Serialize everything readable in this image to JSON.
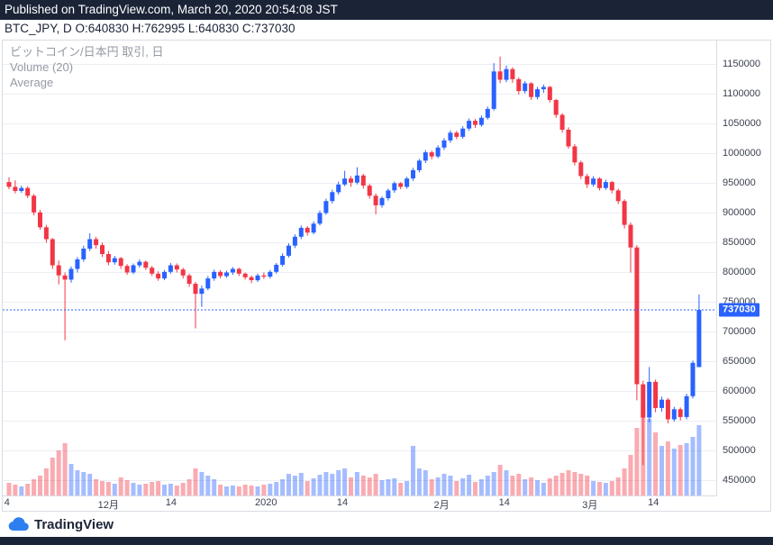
{
  "header": {
    "published_line": "Published on TradingView.com, March 20, 2020 20:54:08 JST",
    "symbol_line": "BTC_JPY, D O:640830 H:762995 L:640830 C:737030"
  },
  "legend": {
    "title": "ビットコイン/日本円 取引, 日",
    "volume": "Volume (20)",
    "average": "Average"
  },
  "footer": {
    "brand": "TradingView"
  },
  "chart_data": {
    "type": "candlestick",
    "symbol": "BTC_JPY",
    "interval": "D",
    "title": "ビットコイン/日本円 取引, 日",
    "ohlc_readout": {
      "open": 640830,
      "high": 762995,
      "low": 640830,
      "close": 737030
    },
    "last_price": 737030,
    "last_price_label": "737030",
    "price_min": 425000,
    "price_max": 1190000,
    "y_ticks": [
      1150000,
      1100000,
      1050000,
      1000000,
      950000,
      900000,
      850000,
      800000,
      750000,
      700000,
      650000,
      600000,
      550000,
      500000,
      450000
    ],
    "x_ticks": [
      {
        "label": "4",
        "pct": 0.6
      },
      {
        "label": "12月",
        "pct": 14.8
      },
      {
        "label": "14",
        "pct": 23.6
      },
      {
        "label": "2020",
        "pct": 36.9
      },
      {
        "label": "14",
        "pct": 47.6
      },
      {
        "label": "2月",
        "pct": 61.5
      },
      {
        "label": "14",
        "pct": 70.3
      },
      {
        "label": "3月",
        "pct": 82.3
      },
      {
        "label": "14",
        "pct": 91.2
      }
    ],
    "colors": {
      "up": "#2962ff",
      "down": "#f23645",
      "volume_up": "rgba(41,98,255,0.42)",
      "volume_down": "rgba(242,54,69,0.42)",
      "last_price_line": "#2962ff",
      "grid": "#eceef4",
      "header_bg": "#1b2437"
    },
    "candles": [
      [
        952000,
        960000,
        940000,
        944000,
        14
      ],
      [
        944000,
        955000,
        933000,
        937000,
        12
      ],
      [
        937000,
        946000,
        934000,
        942000,
        10
      ],
      [
        942000,
        945000,
        925000,
        929000,
        13
      ],
      [
        929000,
        932000,
        896000,
        901000,
        18
      ],
      [
        901000,
        905000,
        872000,
        876000,
        22
      ],
      [
        876000,
        880000,
        850000,
        856000,
        30
      ],
      [
        856000,
        858000,
        806000,
        812000,
        42
      ],
      [
        812000,
        820000,
        780000,
        795000,
        50
      ],
      [
        795000,
        800000,
        686000,
        788000,
        58
      ],
      [
        788000,
        810000,
        783000,
        806000,
        35
      ],
      [
        806000,
        826000,
        800000,
        822000,
        28
      ],
      [
        822000,
        845000,
        818000,
        840000,
        26
      ],
      [
        840000,
        866000,
        836000,
        856000,
        24
      ],
      [
        856000,
        860000,
        840000,
        846000,
        18
      ],
      [
        846000,
        850000,
        826000,
        831000,
        16
      ],
      [
        831000,
        836000,
        812000,
        817000,
        15
      ],
      [
        817000,
        828000,
        813000,
        824000,
        13
      ],
      [
        824000,
        826000,
        806000,
        811000,
        20
      ],
      [
        811000,
        814000,
        796000,
        800000,
        17
      ],
      [
        800000,
        815000,
        797000,
        812000,
        14
      ],
      [
        812000,
        822000,
        808000,
        818000,
        12
      ],
      [
        818000,
        820000,
        804000,
        808000,
        13
      ],
      [
        808000,
        811000,
        794000,
        798000,
        15
      ],
      [
        798000,
        802000,
        786000,
        790000,
        16
      ],
      [
        790000,
        804000,
        787000,
        801000,
        12
      ],
      [
        801000,
        816000,
        798000,
        812000,
        13
      ],
      [
        812000,
        815000,
        800000,
        805000,
        11
      ],
      [
        805000,
        808000,
        790000,
        795000,
        14
      ],
      [
        795000,
        798000,
        776000,
        781000,
        18
      ],
      [
        781000,
        784000,
        706000,
        764000,
        30
      ],
      [
        764000,
        778000,
        742000,
        773000,
        26
      ],
      [
        773000,
        794000,
        770000,
        790000,
        22
      ],
      [
        790000,
        805000,
        786000,
        801000,
        18
      ],
      [
        801000,
        804000,
        790000,
        794000,
        12
      ],
      [
        794000,
        803000,
        791000,
        800000,
        10
      ],
      [
        800000,
        809000,
        796000,
        806000,
        11
      ],
      [
        806000,
        808000,
        794000,
        798000,
        10
      ],
      [
        798000,
        800000,
        788000,
        792000,
        12
      ],
      [
        792000,
        795000,
        782000,
        787000,
        11
      ],
      [
        787000,
        798000,
        784000,
        795000,
        10
      ],
      [
        795000,
        800000,
        789000,
        793000,
        12
      ],
      [
        793000,
        804000,
        790000,
        801000,
        13
      ],
      [
        801000,
        816000,
        798000,
        813000,
        15
      ],
      [
        813000,
        832000,
        810000,
        828000,
        18
      ],
      [
        828000,
        849000,
        825000,
        845000,
        24
      ],
      [
        845000,
        864000,
        841000,
        860000,
        22
      ],
      [
        860000,
        879000,
        856000,
        875000,
        25
      ],
      [
        875000,
        878000,
        862000,
        867000,
        16
      ],
      [
        867000,
        886000,
        864000,
        882000,
        19
      ],
      [
        882000,
        904000,
        879000,
        900000,
        23
      ],
      [
        900000,
        924000,
        897000,
        920000,
        26
      ],
      [
        920000,
        939000,
        916000,
        935000,
        24
      ],
      [
        935000,
        953000,
        931000,
        948000,
        28
      ],
      [
        948000,
        971000,
        945000,
        958000,
        30
      ],
      [
        958000,
        962000,
        944000,
        951000,
        20
      ],
      [
        951000,
        977000,
        948000,
        963000,
        26
      ],
      [
        963000,
        966000,
        941000,
        946000,
        22
      ],
      [
        946000,
        949000,
        924000,
        929000,
        20
      ],
      [
        929000,
        933000,
        898000,
        913000,
        24
      ],
      [
        913000,
        928000,
        909000,
        925000,
        17
      ],
      [
        925000,
        941000,
        921000,
        938000,
        18
      ],
      [
        938000,
        953000,
        934000,
        950000,
        19
      ],
      [
        950000,
        952000,
        940000,
        944000,
        14
      ],
      [
        944000,
        961000,
        941000,
        958000,
        16
      ],
      [
        958000,
        976000,
        954000,
        972000,
        55
      ],
      [
        972000,
        991000,
        968000,
        988000,
        30
      ],
      [
        988000,
        1006000,
        984000,
        1002000,
        28
      ],
      [
        1002000,
        1005000,
        990000,
        995000,
        18
      ],
      [
        995000,
        1014000,
        992000,
        1010000,
        20
      ],
      [
        1010000,
        1026000,
        1006000,
        1022000,
        24
      ],
      [
        1022000,
        1039000,
        1018000,
        1035000,
        22
      ],
      [
        1035000,
        1038000,
        1024000,
        1028000,
        16
      ],
      [
        1028000,
        1046000,
        1025000,
        1042000,
        19
      ],
      [
        1042000,
        1059000,
        1038000,
        1055000,
        23
      ],
      [
        1055000,
        1058000,
        1043000,
        1048000,
        15
      ],
      [
        1048000,
        1064000,
        1045000,
        1060000,
        18
      ],
      [
        1060000,
        1079000,
        1057000,
        1075000,
        22
      ],
      [
        1075000,
        1152000,
        1072000,
        1138000,
        26
      ],
      [
        1138000,
        1163000,
        1118000,
        1124000,
        34
      ],
      [
        1124000,
        1148000,
        1120000,
        1142000,
        28
      ],
      [
        1142000,
        1145000,
        1119000,
        1125000,
        22
      ],
      [
        1125000,
        1128000,
        1099000,
        1105000,
        24
      ],
      [
        1105000,
        1122000,
        1101000,
        1118000,
        18
      ],
      [
        1118000,
        1120000,
        1090000,
        1095000,
        20
      ],
      [
        1095000,
        1112000,
        1091000,
        1108000,
        17
      ],
      [
        1108000,
        1116000,
        1102000,
        1112000,
        14
      ],
      [
        1112000,
        1114000,
        1086000,
        1090000,
        19
      ],
      [
        1090000,
        1092000,
        1060000,
        1065000,
        22
      ],
      [
        1065000,
        1068000,
        1035000,
        1040000,
        25
      ],
      [
        1040000,
        1044000,
        1008000,
        1012000,
        28
      ],
      [
        1012000,
        1016000,
        980000,
        985000,
        26
      ],
      [
        985000,
        988000,
        957000,
        962000,
        24
      ],
      [
        962000,
        966000,
        942000,
        948000,
        22
      ],
      [
        948000,
        962000,
        944000,
        958000,
        16
      ],
      [
        958000,
        960000,
        938000,
        942000,
        15
      ],
      [
        942000,
        956000,
        939000,
        952000,
        14
      ],
      [
        952000,
        954000,
        933000,
        938000,
        16
      ],
      [
        938000,
        941000,
        915000,
        920000,
        20
      ],
      [
        920000,
        923000,
        874000,
        880000,
        30
      ],
      [
        880000,
        884000,
        800000,
        842000,
        45
      ],
      [
        842000,
        846000,
        585000,
        612000,
        75
      ],
      [
        612000,
        618000,
        476000,
        556000,
        100
      ],
      [
        556000,
        641000,
        548000,
        616000,
        85
      ],
      [
        616000,
        620000,
        565000,
        572000,
        70
      ],
      [
        572000,
        591000,
        566000,
        586000,
        55
      ],
      [
        586000,
        589000,
        546000,
        553000,
        60
      ],
      [
        553000,
        574000,
        549000,
        570000,
        52
      ],
      [
        570000,
        573000,
        551000,
        557000,
        56
      ],
      [
        557000,
        596000,
        553000,
        592000,
        58
      ],
      [
        592000,
        652000,
        588000,
        648000,
        65
      ],
      [
        640830,
        762995,
        640830,
        737030,
        78
      ]
    ]
  }
}
